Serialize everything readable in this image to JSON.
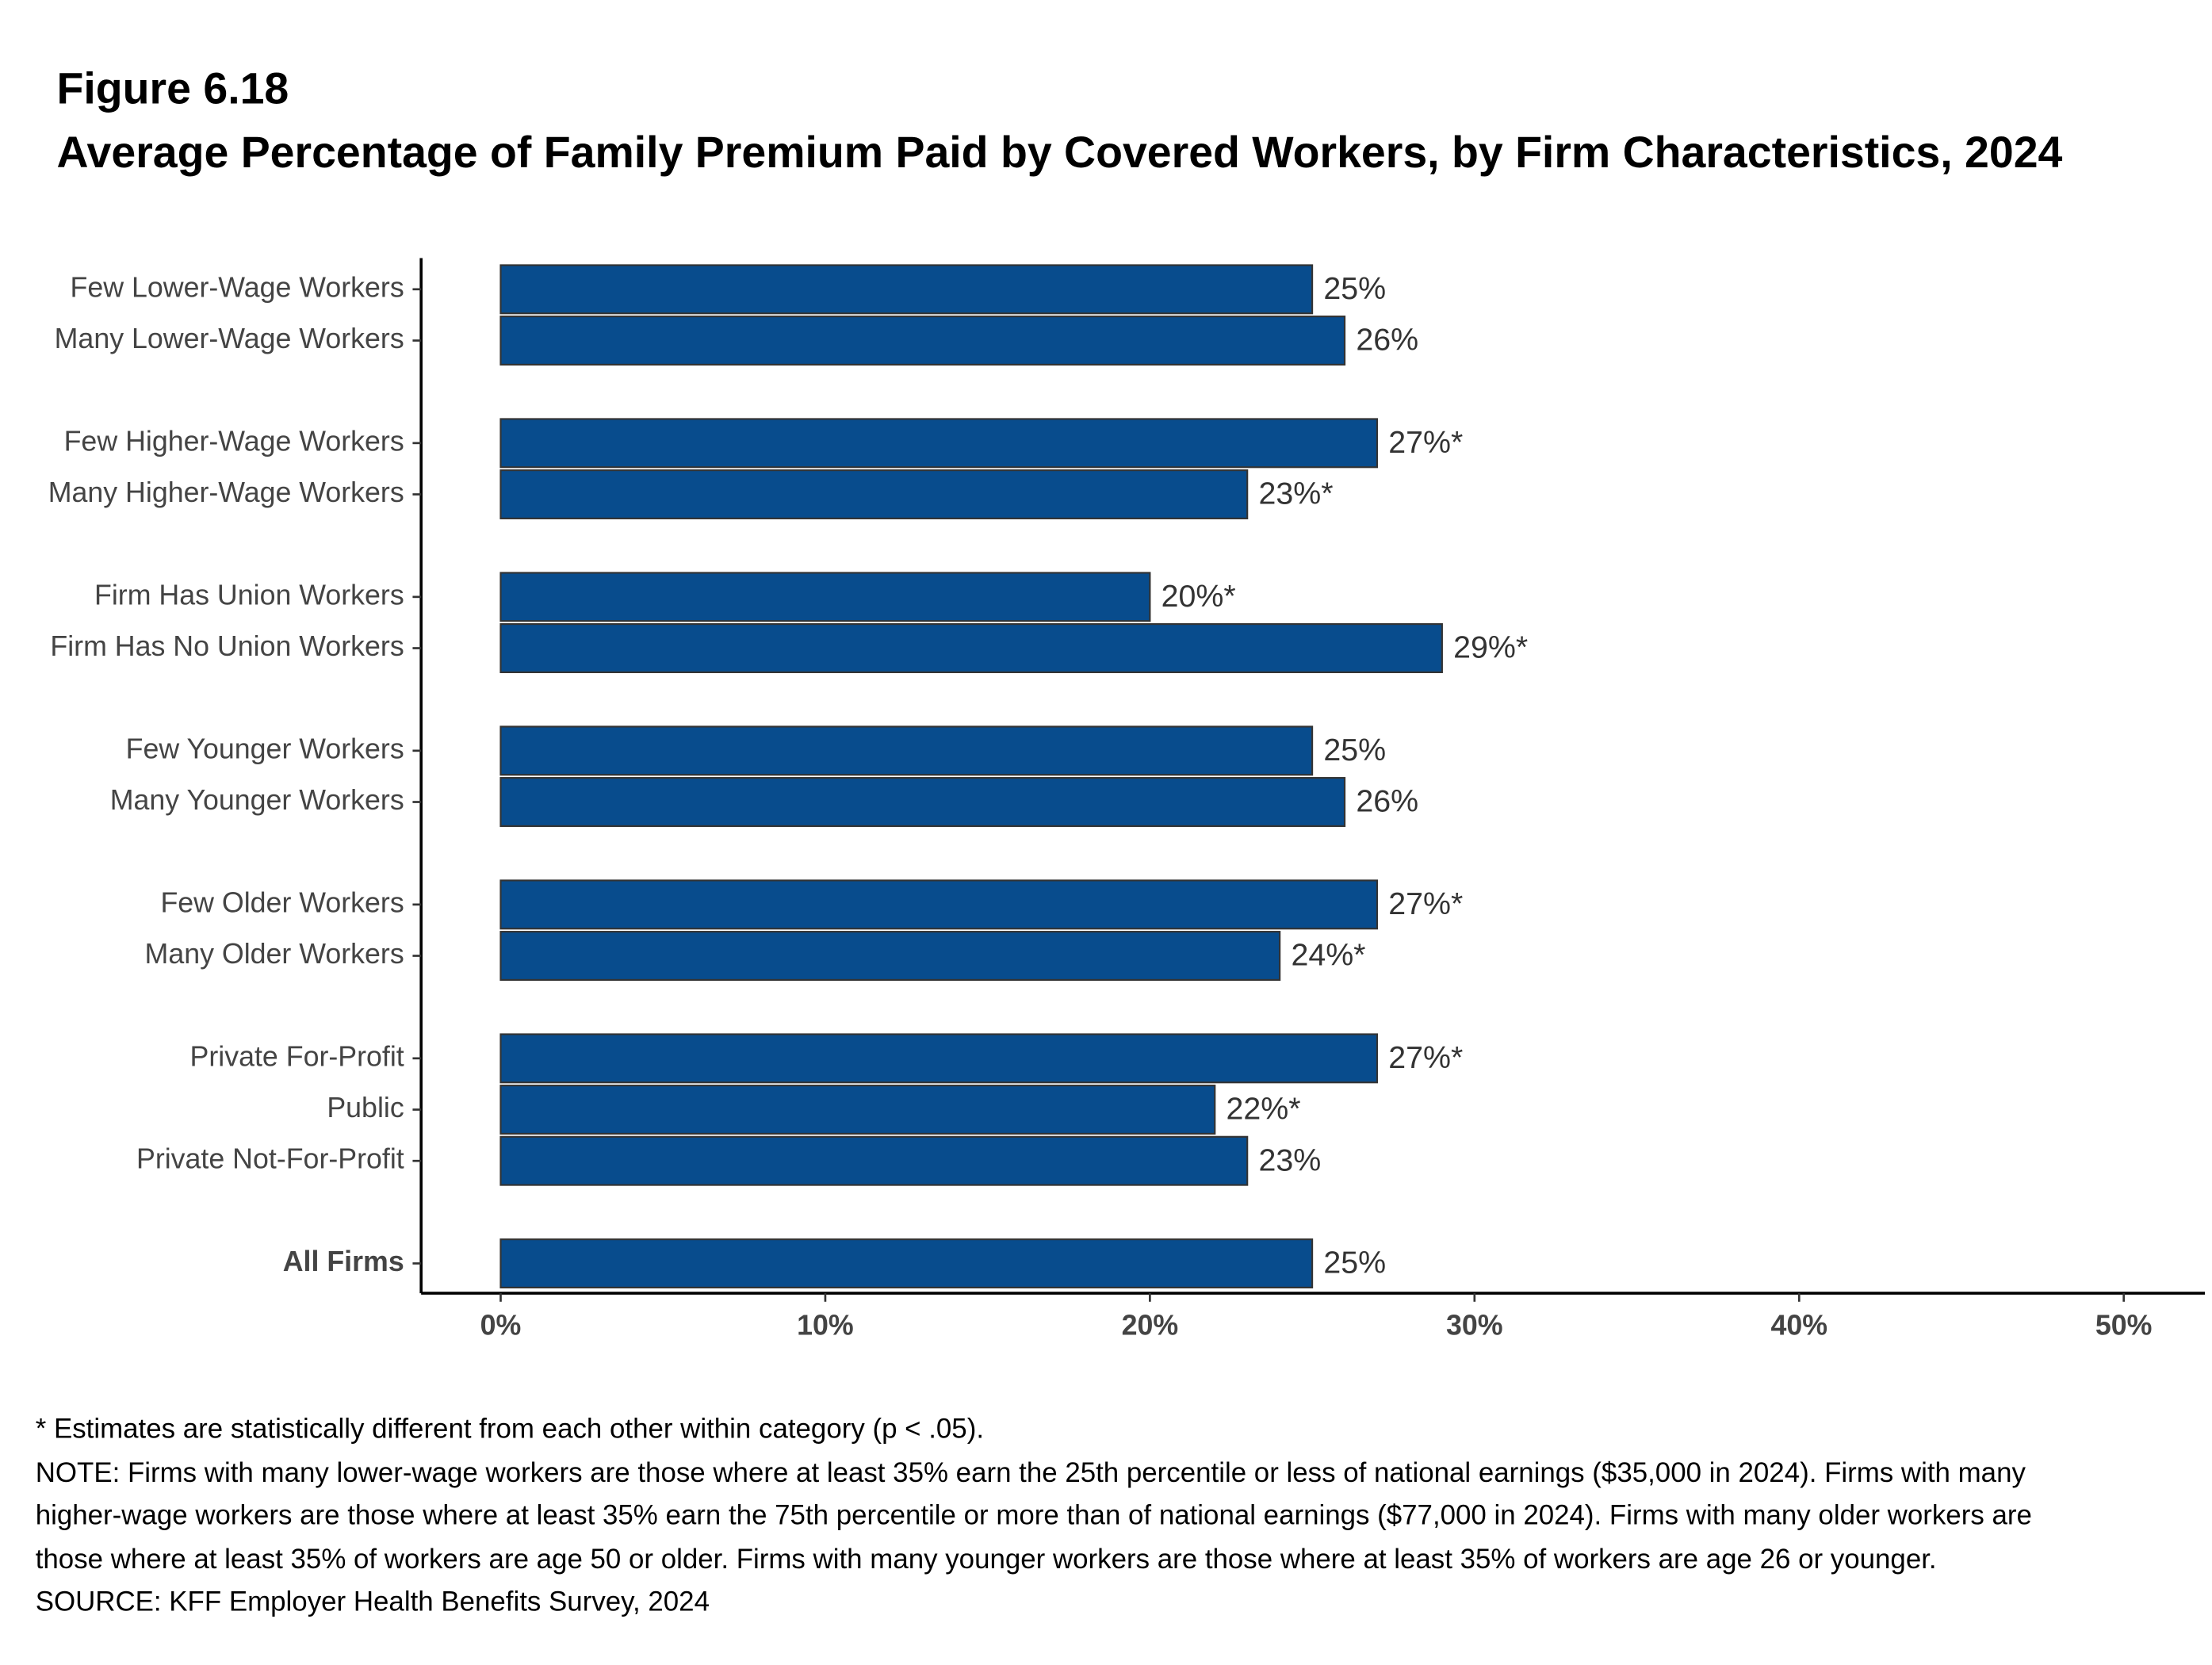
{
  "chart_data": {
    "type": "bar",
    "orientation": "horizontal",
    "figure_label": "Figure 6.18",
    "title": "Average Percentage of Family Premium Paid by Covered Workers, by Firm Characteristics, 2024",
    "categories": [
      "Few Lower-Wage Workers",
      "Many Lower-Wage Workers",
      null,
      "Few Higher-Wage Workers",
      "Many Higher-Wage Workers",
      null,
      "Firm Has Union Workers",
      "Firm Has No Union Workers",
      null,
      "Few Younger Workers",
      "Many Younger Workers",
      null,
      "Few Older Workers",
      "Many Older Workers",
      null,
      "Private For-Profit",
      "Public",
      "Private Not-For-Profit",
      null,
      "All Firms"
    ],
    "values": [
      25,
      26,
      null,
      27,
      23,
      null,
      20,
      29,
      null,
      25,
      26,
      null,
      27,
      24,
      null,
      27,
      22,
      23,
      null,
      25
    ],
    "value_labels": [
      "25%",
      "26%",
      null,
      "27%*",
      "23%*",
      null,
      "20%*",
      "29%*",
      null,
      "25%",
      "26%",
      null,
      "27%*",
      "24%*",
      null,
      "27%*",
      "22%*",
      "23%",
      null,
      "25%"
    ],
    "color": "#084c8d",
    "xlim": [
      -2.45,
      52.5
    ],
    "xticks": [
      {
        "value": 0,
        "label": "0%"
      },
      {
        "value": 10,
        "label": "10%"
      },
      {
        "value": 20,
        "label": "20%"
      },
      {
        "value": 30,
        "label": "30%"
      },
      {
        "value": 40,
        "label": "40%"
      },
      {
        "value": 50,
        "label": "50%"
      }
    ],
    "grid": false,
    "notes": [
      "* Estimates are statistically different from each other within category (p < .05).",
      "NOTE: Firms with many lower-wage workers are those where at least 35% earn the 25th percentile or less of national earnings ($35,000 in 2024). Firms with many higher-wage workers are those where at least 35% earn the 75th percentile or more than of national earnings ($77,000 in 2024). Firms with many older workers are those where at least 35% of workers are age 50 or older. Firms with many younger workers are those where at least 35% of workers are age 26 or younger.",
      "SOURCE: KFF Employer Health Benefits Survey, 2024"
    ]
  }
}
